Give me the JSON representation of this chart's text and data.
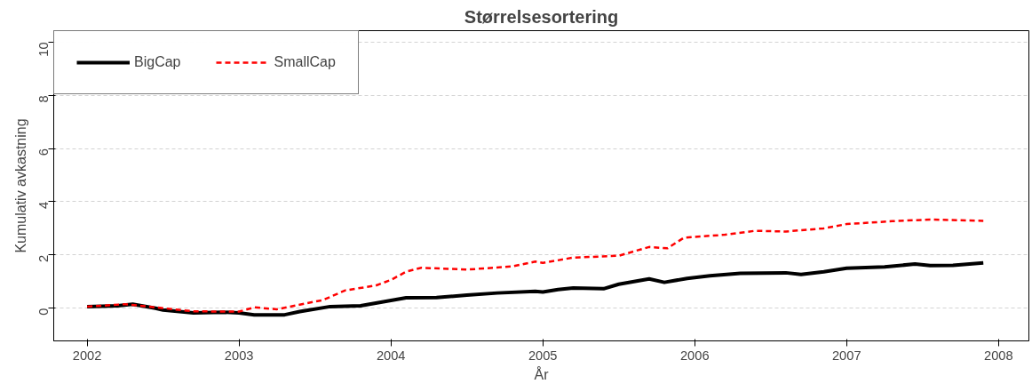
{
  "chart_data": {
    "type": "line",
    "title": "Størrelsesortering",
    "xlabel": "År",
    "ylabel": "Kumulativ avkastning",
    "xlim": [
      2001.78,
      2008.2
    ],
    "xticks": [
      2002,
      2003,
      2004,
      2005,
      2006,
      2007,
      2008
    ],
    "ylim": [
      -1.23,
      10.43
    ],
    "yticks": [
      0,
      2,
      4,
      6,
      8,
      10
    ],
    "grid": "y",
    "legend": "top left",
    "series": [
      {
        "name": "BigCap",
        "color": "#000000",
        "line_style": "solid",
        "x": [
          2002.0,
          2002.2,
          2002.3,
          2002.45,
          2002.5,
          2002.7,
          2002.9,
          2003.0,
          2003.1,
          2003.3,
          2003.4,
          2003.6,
          2003.8,
          2003.95,
          2004.1,
          2004.3,
          2004.5,
          2004.7,
          2004.95,
          2005.0,
          2005.1,
          2005.2,
          2005.4,
          2005.5,
          2005.7,
          2005.8,
          2005.95,
          2006.1,
          2006.3,
          2006.6,
          2006.7,
          2006.85,
          2007.0,
          2007.25,
          2007.45,
          2007.55,
          2007.7,
          2007.9
        ],
        "values": [
          0.06,
          0.09,
          0.15,
          0.0,
          -0.07,
          -0.18,
          -0.15,
          -0.18,
          -0.25,
          -0.25,
          -0.13,
          0.06,
          0.09,
          0.24,
          0.39,
          0.4,
          0.49,
          0.57,
          0.63,
          0.61,
          0.7,
          0.76,
          0.73,
          0.9,
          1.1,
          0.97,
          1.12,
          1.22,
          1.31,
          1.33,
          1.27,
          1.37,
          1.5,
          1.55,
          1.66,
          1.6,
          1.61,
          1.7
        ]
      },
      {
        "name": "SmallCap",
        "color": "#ff0000",
        "line_style": "dashed",
        "x": [
          2002.0,
          2002.25,
          2002.45,
          2002.7,
          2003.0,
          2003.1,
          2003.25,
          2003.45,
          2003.55,
          2003.7,
          2003.9,
          2004.0,
          2004.1,
          2004.2,
          2004.5,
          2004.8,
          2004.95,
          2005.0,
          2005.2,
          2005.5,
          2005.7,
          2005.82,
          2005.93,
          2006.2,
          2006.4,
          2006.6,
          2006.85,
          2007.0,
          2007.3,
          2007.55,
          2007.9
        ],
        "values": [
          0.06,
          0.15,
          0.03,
          -0.12,
          -0.13,
          0.03,
          -0.04,
          0.19,
          0.3,
          0.67,
          0.85,
          1.06,
          1.37,
          1.52,
          1.45,
          1.57,
          1.75,
          1.7,
          1.9,
          1.97,
          2.3,
          2.25,
          2.65,
          2.76,
          2.91,
          2.88,
          3.0,
          3.16,
          3.27,
          3.33,
          3.28
        ]
      }
    ]
  }
}
